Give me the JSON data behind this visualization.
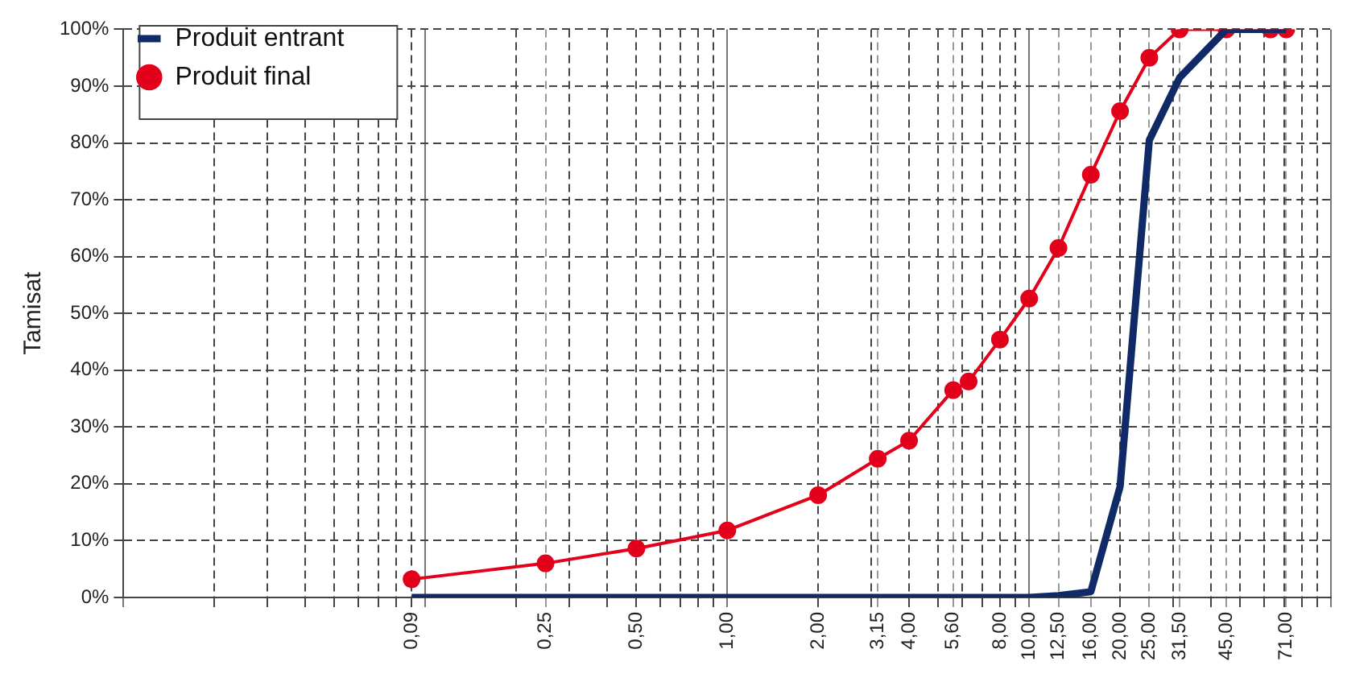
{
  "chart_data": {
    "type": "line",
    "ylabel": "Tamisat",
    "log": "x",
    "xlim": [
      0.01,
      100
    ],
    "ylim": [
      0,
      100
    ],
    "xticks": [
      {
        "value": 0.01,
        "label": null
      },
      {
        "value": 0.02,
        "label": null
      },
      {
        "value": 0.03,
        "label": null
      },
      {
        "value": 0.04,
        "label": null
      },
      {
        "value": 0.05,
        "label": null
      },
      {
        "value": 0.06,
        "label": null
      },
      {
        "value": 0.07,
        "label": null
      },
      {
        "value": 0.08,
        "label": null
      },
      {
        "value": 0.09,
        "label": "0,09"
      },
      {
        "value": 0.1,
        "label": null
      },
      {
        "value": 0.2,
        "label": null
      },
      {
        "value": 0.25,
        "label": "0,25"
      },
      {
        "value": 0.3,
        "label": null
      },
      {
        "value": 0.4,
        "label": null
      },
      {
        "value": 0.5,
        "label": "0,50"
      },
      {
        "value": 0.6,
        "label": null
      },
      {
        "value": 0.7,
        "label": null
      },
      {
        "value": 0.8,
        "label": null
      },
      {
        "value": 0.9,
        "label": null
      },
      {
        "value": 1,
        "label": "1,00"
      },
      {
        "value": 2,
        "label": "2,00"
      },
      {
        "value": 3,
        "label": null
      },
      {
        "value": 3.15,
        "label": "3,15"
      },
      {
        "value": 4,
        "label": "4,00"
      },
      {
        "value": 5,
        "label": null
      },
      {
        "value": 5.6,
        "label": "5,60"
      },
      {
        "value": 6,
        "label": null
      },
      {
        "value": 7,
        "label": null
      },
      {
        "value": 8,
        "label": "8,00"
      },
      {
        "value": 9,
        "label": null
      },
      {
        "value": 10,
        "label": "10,00"
      },
      {
        "value": 12.5,
        "label": "12,50"
      },
      {
        "value": 16,
        "label": "16,00"
      },
      {
        "value": 20,
        "label": "20,00"
      },
      {
        "value": 25,
        "label": "25,00"
      },
      {
        "value": 30,
        "label": null
      },
      {
        "value": 31.5,
        "label": "31,50"
      },
      {
        "value": 40,
        "label": null
      },
      {
        "value": 45,
        "label": "45,00"
      },
      {
        "value": 50,
        "label": null
      },
      {
        "value": 60,
        "label": null
      },
      {
        "value": 70,
        "label": null
      },
      {
        "value": 71,
        "label": "71,00"
      },
      {
        "value": 80,
        "label": null
      },
      {
        "value": 90,
        "label": null
      },
      {
        "value": 100,
        "label": null
      }
    ],
    "yticks": [
      {
        "value": 0,
        "label": "0%"
      },
      {
        "value": 10,
        "label": "10%"
      },
      {
        "value": 20,
        "label": "20%"
      },
      {
        "value": 30,
        "label": "30%"
      },
      {
        "value": 40,
        "label": "40%"
      },
      {
        "value": 50,
        "label": "50%"
      },
      {
        "value": 60,
        "label": "60%"
      },
      {
        "value": 70,
        "label": "70%"
      },
      {
        "value": 80,
        "label": "80%"
      },
      {
        "value": 90,
        "label": "90%"
      },
      {
        "value": 100,
        "label": "100%"
      }
    ],
    "grid": true,
    "legend": "top left",
    "line_style": "solid",
    "series": [
      {
        "name": "Produit entrant",
        "color": "#0f2a66",
        "marker": "none",
        "x": [
          0.09,
          0.25,
          0.5,
          1,
          2,
          3.15,
          4,
          5.6,
          8,
          10,
          12.5,
          16,
          20,
          25,
          31.5,
          45,
          71
        ],
        "values": [
          0,
          0,
          0,
          0,
          0,
          0,
          0,
          0,
          0,
          0,
          0.3,
          1,
          19.5,
          80.5,
          91.5,
          100,
          100
        ]
      },
      {
        "name": "Produit final",
        "color": "#e3001b",
        "marker": "circle",
        "x": [
          0.09,
          0.25,
          0.5,
          1,
          2,
          3.15,
          4,
          5.6,
          6.3,
          8,
          10,
          12.5,
          16,
          20,
          25,
          31.5,
          45,
          63,
          71
        ],
        "values": [
          3.2,
          6,
          8.6,
          11.8,
          18,
          24.4,
          27.6,
          36.5,
          38,
          45.4,
          52.6,
          61.5,
          74.4,
          85.6,
          95,
          100,
          100,
          100,
          100
        ]
      }
    ]
  }
}
